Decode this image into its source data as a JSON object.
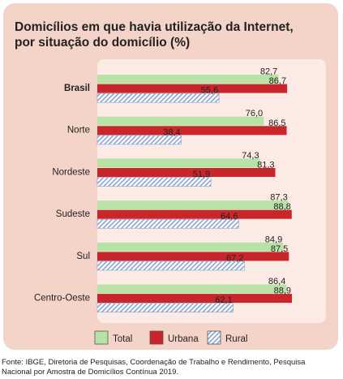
{
  "chart_data": {
    "type": "bar",
    "orientation": "horizontal",
    "title_lines": [
      "Domicílios em que havia utilização da Internet,",
      "por situação do domicílio (%)"
    ],
    "categories": [
      "Brasil",
      "Norte",
      "Nordeste",
      "Sudeste",
      "Sul",
      "Centro-Oeste"
    ],
    "series": [
      {
        "name": "Total",
        "color": "#b9e3a6",
        "values": [
          82.7,
          76.0,
          74.3,
          87.3,
          84.9,
          86.4
        ],
        "labels": [
          "82,7",
          "76,0",
          "74,3",
          "87,3",
          "84,9",
          "86,4"
        ]
      },
      {
        "name": "Urbana",
        "color": "#c8262b",
        "values": [
          86.7,
          86.5,
          81.3,
          88.8,
          87.5,
          88.9
        ],
        "labels": [
          "86,7",
          "86,5",
          "81,3",
          "88,8",
          "87,5",
          "88,9"
        ]
      },
      {
        "name": "Rural",
        "color": "#b6c6e4",
        "pattern": "diagonal-hatch",
        "values": [
          55.6,
          38.4,
          51.9,
          64.6,
          67.2,
          62.1
        ],
        "labels": [
          "55,6",
          "38,4",
          "51,9",
          "64,6",
          "67,2",
          "62,1"
        ]
      }
    ],
    "xlim": [
      0,
      100
    ],
    "legend_position": "bottom",
    "plot_background": "#fcebe4",
    "card_background": "#f4d3c8",
    "bold_categories": [
      "Brasil"
    ]
  },
  "source_lines": [
    "Fonte: IBGE, Diretoria de Pesquisas, Coordenação de Trabalho e Rendimento, Pesquisa",
    "Nacional por Amostra de Domicílios Contínua 2019."
  ]
}
